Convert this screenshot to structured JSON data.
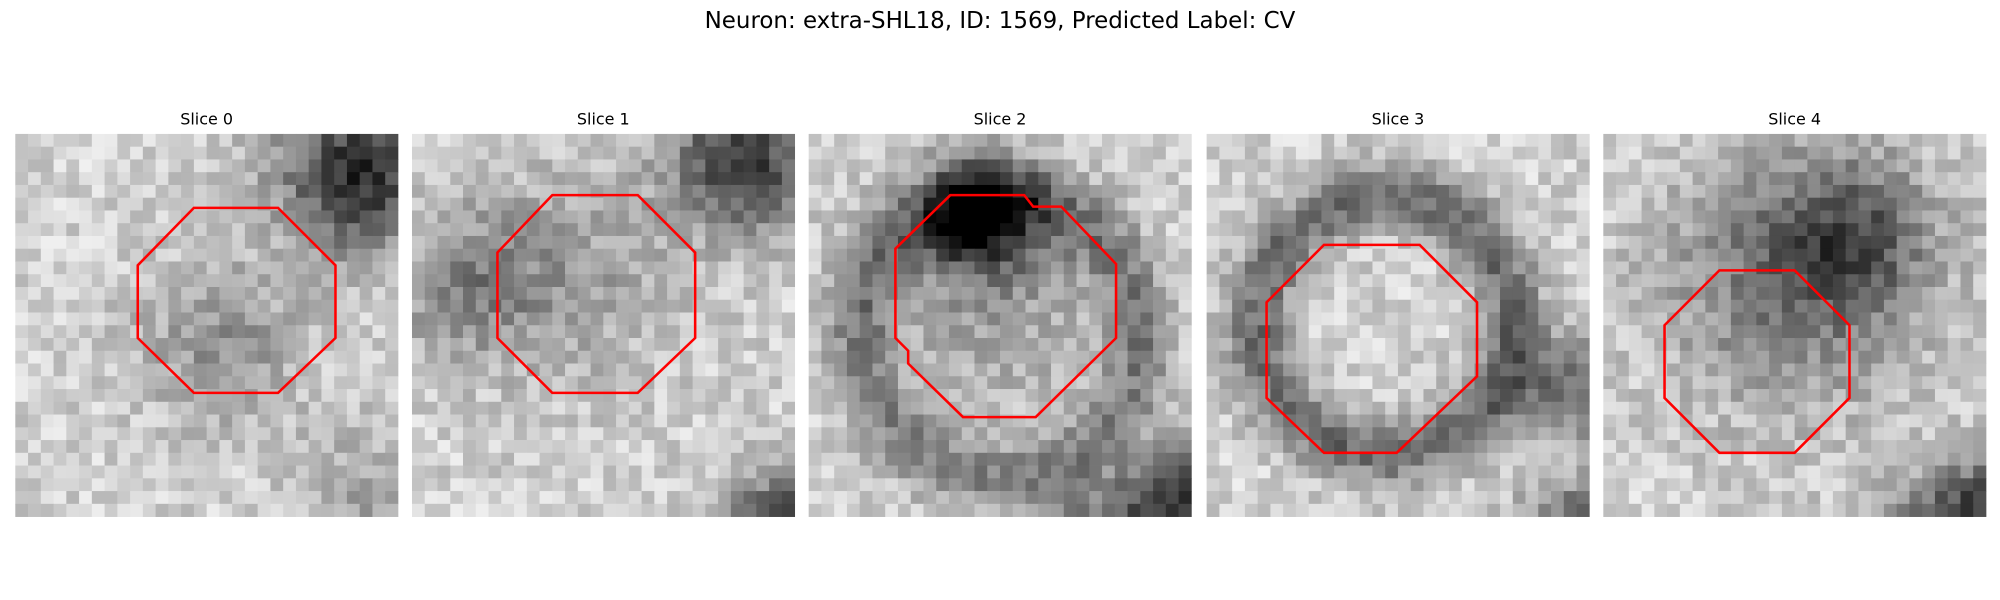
{
  "title": "Neuron: extra-SHL18, ID: 1569, Predicted Label: CV",
  "panels": [
    {
      "title": "Slice 0"
    },
    {
      "title": "Slice 1"
    },
    {
      "title": "Slice 2"
    },
    {
      "title": "Slice 3"
    },
    {
      "title": "Slice 4"
    }
  ]
}
